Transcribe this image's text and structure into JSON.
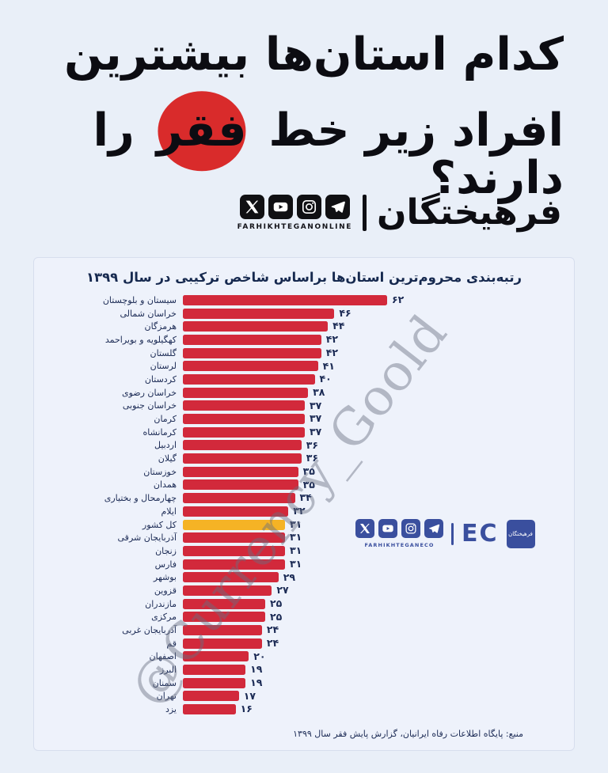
{
  "page": {
    "background": "#e9eff8"
  },
  "header": {
    "headline_line1": "کدام استان‌ها بیشترین",
    "headline_line2_before": "افراد زیر خط",
    "headline_highlight": "فقر",
    "headline_line2_after": "را دارند؟",
    "highlight_color": "#d92b2b",
    "social_icons": [
      "x",
      "youtube",
      "instagram",
      "telegram"
    ],
    "social_caption": "FARHIKHTEGANONLINE",
    "brand_logo": "فرهیختگان"
  },
  "chart_panel": {
    "inner_logo": {
      "icons": [
        "x",
        "youtube",
        "instagram",
        "telegram"
      ],
      "caption": "FARHIKHTEGANECO",
      "logo_text": "EC",
      "logo_square_text": "فرهیختگان",
      "color": "#3a4f9e"
    }
  },
  "watermark": "@Currency_Goold",
  "chart_data": {
    "type": "bar",
    "orientation": "horizontal",
    "title": "رتبه‌بندی محروم‌ترین استان‌ها براساس شاخص ترکیبی در سال ۱۳۹۹",
    "xlabel": "",
    "ylabel": "",
    "xlim": [
      0,
      62
    ],
    "grid": false,
    "legend": "none",
    "bar_color": "#d2293b",
    "highlight_color": "#f5b325",
    "highlight_category": "کل کشور",
    "categories": [
      "سیستان و بلوچستان",
      "خراسان شمالی",
      "هرمزگان",
      "کهگیلویه و بویراحمد",
      "گلستان",
      "لرستان",
      "کردستان",
      "خراسان رضوی",
      "خراسان جنوبی",
      "کرمان",
      "کرمانشاه",
      "اردبیل",
      "گیلان",
      "خوزستان",
      "همدان",
      "چهارمحال و بختیاری",
      "ایلام",
      "کل کشور",
      "آذربایجان شرقی",
      "زنجان",
      "فارس",
      "بوشهر",
      "قزوین",
      "مازندران",
      "مرکزی",
      "آذربایجان غربی",
      "قم",
      "اصفهان",
      "البرز",
      "سمنان",
      "تهران",
      "یزد"
    ],
    "values": [
      62,
      46,
      44,
      42,
      42,
      41,
      40,
      38,
      37,
      37,
      37,
      36,
      36,
      35,
      35,
      34,
      32,
      31,
      31,
      31,
      31,
      29,
      27,
      25,
      25,
      24,
      24,
      20,
      19,
      19,
      17,
      16
    ],
    "values_fa": [
      "۶۲",
      "۴۶",
      "۴۴",
      "۴۲",
      "۴۲",
      "۴۱",
      "۴۰",
      "۳۸",
      "۳۷",
      "۳۷",
      "۳۷",
      "۳۶",
      "۳۶",
      "۳۵",
      "۳۵",
      "۳۴",
      "۳۲",
      "۳۱",
      "۳۱",
      "۳۱",
      "۳۱",
      "۲۹",
      "۲۷",
      "۲۵",
      "۲۵",
      "۲۴",
      "۲۴",
      "۲۰",
      "۱۹",
      "۱۹",
      "۱۷",
      "۱۶"
    ],
    "source": "منبع: پایگاه اطلاعات رفاه ایرانیان، گزارش پایش فقر سال ۱۳۹۹"
  }
}
